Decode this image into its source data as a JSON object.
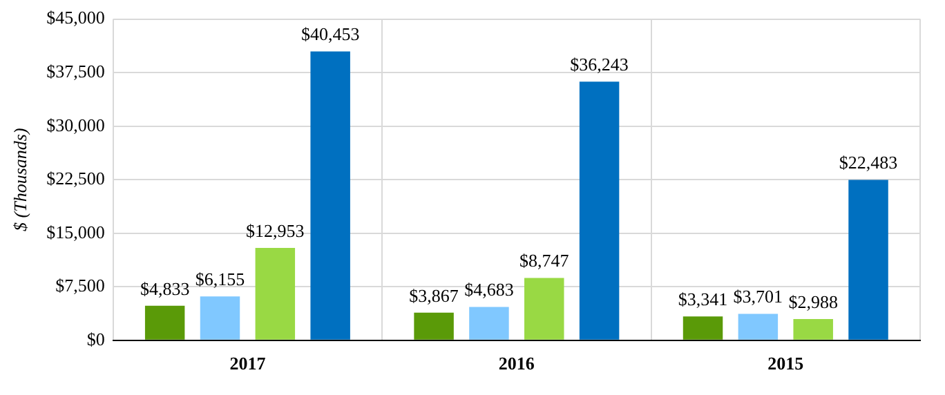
{
  "chart_data": {
    "type": "bar",
    "ylabel": "$ (Thousands)",
    "categories": [
      "2017",
      "2016",
      "2015"
    ],
    "series": [
      {
        "color": "#5a9a08",
        "values": [
          4833,
          3867,
          3341
        ],
        "value_labels": [
          "$4,833",
          "$3,867",
          "$3,341"
        ]
      },
      {
        "color": "#80c8ff",
        "values": [
          6155,
          4683,
          3701
        ],
        "value_labels": [
          "$6,155",
          "$4,683",
          "$3,701"
        ]
      },
      {
        "color": "#99d944",
        "values": [
          12953,
          8747,
          2988
        ],
        "value_labels": [
          "$12,953",
          "$8,747",
          "$2,988"
        ]
      },
      {
        "color": "#0070c0",
        "values": [
          40453,
          36243,
          22483
        ],
        "value_labels": [
          "$40,453",
          "$36,243",
          "$22,483"
        ]
      }
    ],
    "ylim": [
      0,
      45000
    ],
    "yticks": [
      {
        "value": 0,
        "label": "$0"
      },
      {
        "value": 7500,
        "label": "$7,500"
      },
      {
        "value": 15000,
        "label": "$15,000"
      },
      {
        "value": 22500,
        "label": "$22,500"
      },
      {
        "value": 30000,
        "label": "$30,000"
      },
      {
        "value": 37500,
        "label": "$37,500"
      },
      {
        "value": 45000,
        "label": "$45,000"
      }
    ],
    "grid": true,
    "legend": false
  }
}
